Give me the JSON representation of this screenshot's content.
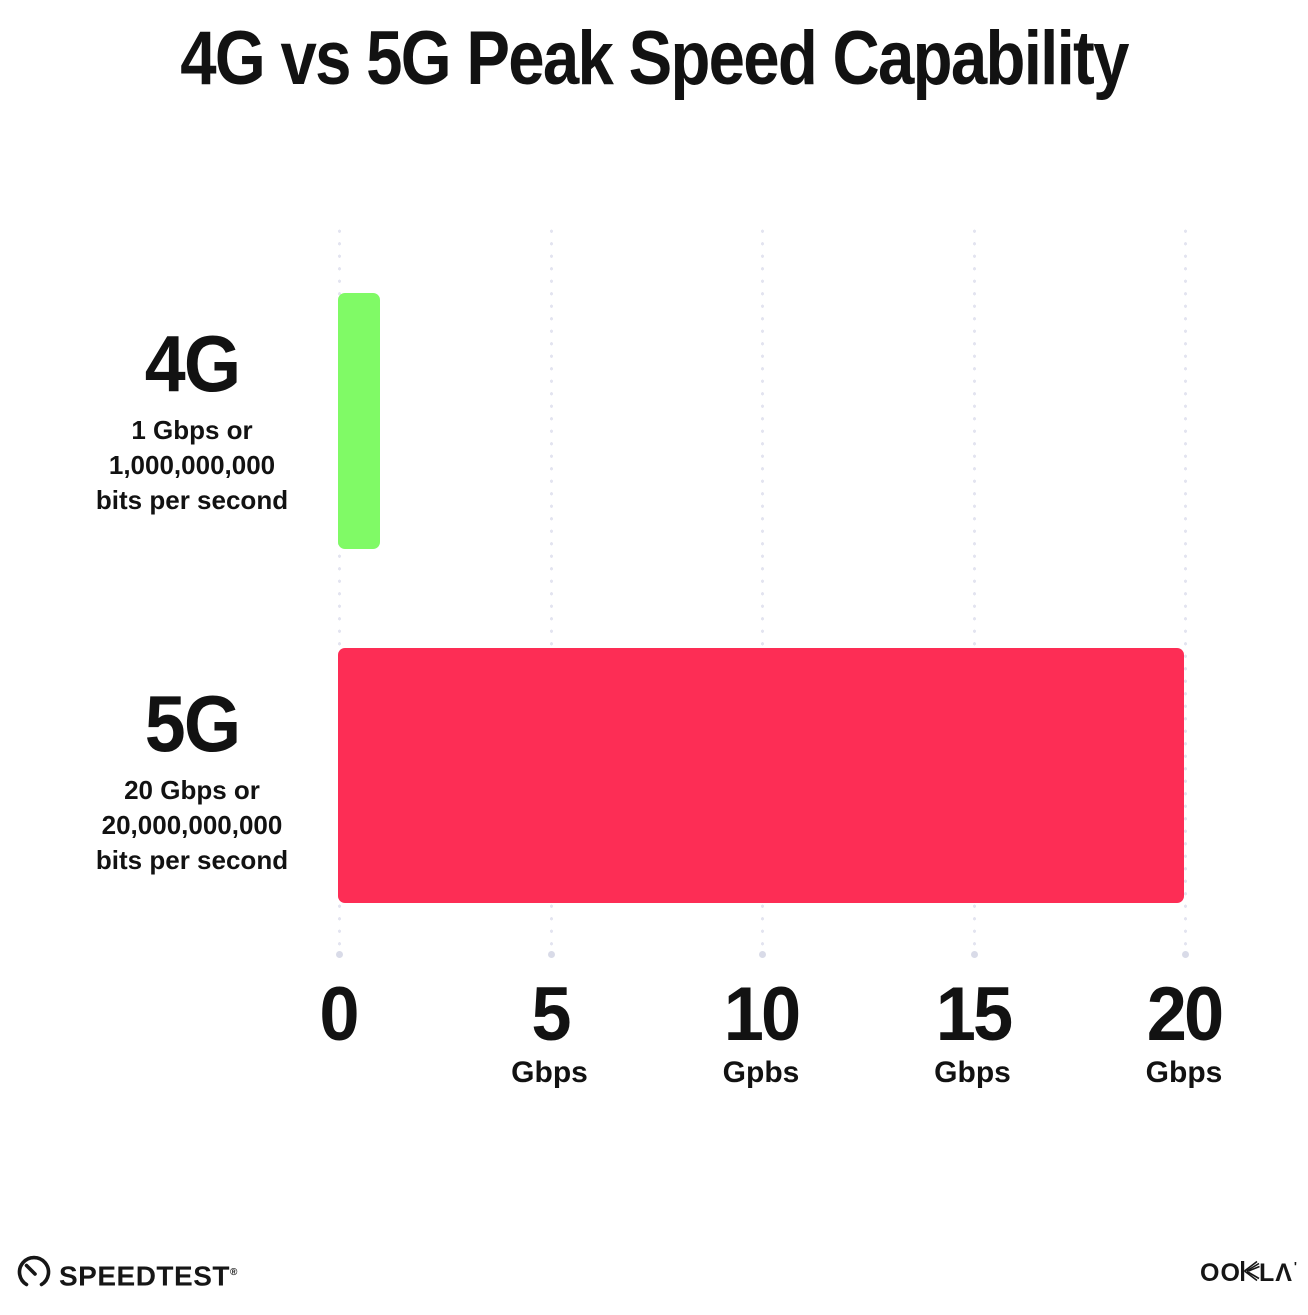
{
  "title": "4G vs 5G Peak Speed Capability",
  "chart_data": {
    "type": "bar",
    "orientation": "horizontal",
    "title": "4G vs 5G Peak Speed Capability",
    "categories": [
      "4G",
      "5G"
    ],
    "values": [
      1,
      20
    ],
    "value_unit": "Gbps",
    "category_sublabels": [
      "1 Gbps or 1,000,000,000 bits per second",
      "20 Gbps or 20,000,000,000 bits per second"
    ],
    "bar_colors": [
      "#80FA66",
      "#FD2D55"
    ],
    "xlim": [
      0,
      20
    ],
    "x_ticks": [
      0,
      5,
      10,
      15,
      20
    ],
    "x_tick_labels": [
      "0",
      "5 Gbps",
      "10 Gpbs",
      "15 Gbps",
      "20 Gbps"
    ],
    "grid": "vertical-dotted",
    "legend": "none"
  },
  "rows": [
    {
      "label": "4G",
      "desc1": "1 Gbps or",
      "desc2": "1,000,000,000",
      "desc3": "bits per second",
      "value": 1,
      "color": "#80FA66"
    },
    {
      "label": "5G",
      "desc1": "20 Gbps or",
      "desc2": "20,000,000,000",
      "desc3": "bits per second",
      "value": 20,
      "color": "#FD2D55"
    }
  ],
  "x_axis": {
    "ticks": [
      {
        "number": "0",
        "unit": ""
      },
      {
        "number": "5",
        "unit": "Gbps"
      },
      {
        "number": "10",
        "unit": "Gpbs"
      },
      {
        "number": "15",
        "unit": "Gbps"
      },
      {
        "number": "20",
        "unit": "Gbps"
      }
    ]
  },
  "footer": {
    "speedtest": "SPEEDTEST",
    "speedtest_mark": "®",
    "ookla_left": "OO",
    "ookla_right": "LΛ",
    "ookla_mark": "'"
  },
  "colors": {
    "bar_4g": "#80FA66",
    "bar_5g": "#FD2D55",
    "grid_dots": "#E3E4F0",
    "grid_end_dot": "#D9DBE8",
    "text": "#121212"
  }
}
